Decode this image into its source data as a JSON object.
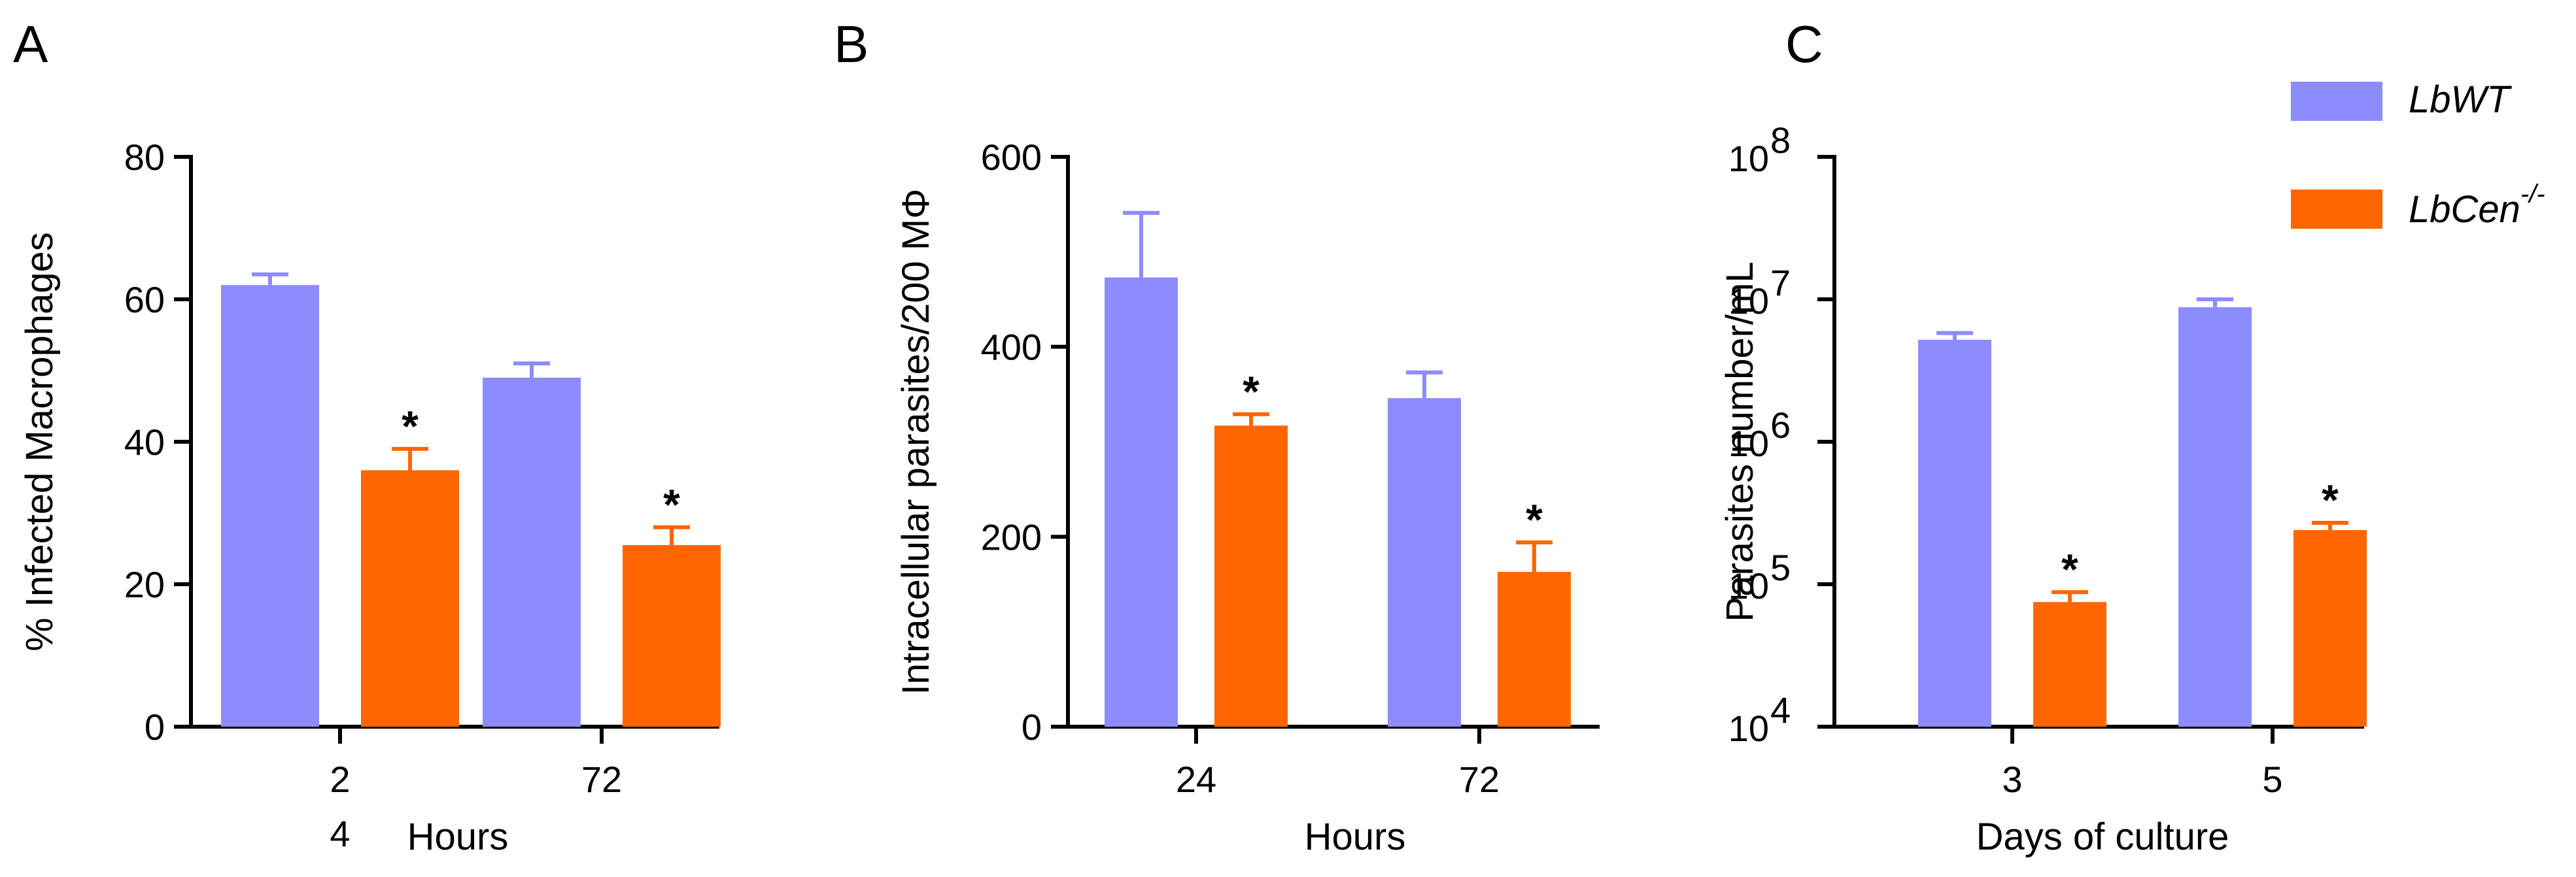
{
  "legend": {
    "entries": [
      {
        "label_main": "LbWT",
        "label_sup": "",
        "color": "#8c8cff"
      },
      {
        "label_main": "LbCen",
        "label_sup": "-/-",
        "color": "#ff6600"
      }
    ]
  },
  "chart_data": [
    {
      "panel": "A",
      "type": "bar",
      "ylabel": "% Infected Macrophages",
      "xlabel": "Hours",
      "categories": [
        "24",
        "72"
      ],
      "category_labels_display": [
        [
          "2",
          "4"
        ],
        [
          "72"
        ]
      ],
      "ylim": [
        0,
        80
      ],
      "yticks": [
        0,
        20,
        40,
        60,
        80
      ],
      "ytick_labels": [
        "0",
        "20",
        "40",
        "60",
        "80"
      ],
      "log_scale": false,
      "series": [
        {
          "name": "LbWT",
          "values": [
            62,
            49
          ],
          "errors": [
            1.5,
            2
          ],
          "color": "#8c8cff"
        },
        {
          "name": "LbCen-/-",
          "values": [
            36,
            25.5
          ],
          "errors": [
            3,
            2.5
          ],
          "color": "#ff6600",
          "significance": [
            "*",
            "*"
          ]
        }
      ]
    },
    {
      "panel": "B",
      "type": "bar",
      "ylabel": "Intracellular parasites/200 MΦ",
      "xlabel": "Hours",
      "categories": [
        "24",
        "72"
      ],
      "category_labels_display": [
        [
          "24"
        ],
        [
          "72"
        ]
      ],
      "ylim": [
        0,
        600
      ],
      "yticks": [
        0,
        200,
        400,
        600
      ],
      "ytick_labels": [
        "0",
        "200",
        "400",
        "600"
      ],
      "log_scale": false,
      "series": [
        {
          "name": "LbWT",
          "values": [
            473,
            346
          ],
          "errors": [
            68,
            27
          ],
          "color": "#8c8cff"
        },
        {
          "name": "LbCen-/-",
          "values": [
            317,
            163
          ],
          "errors": [
            12,
            31
          ],
          "color": "#ff6600",
          "significance": [
            "*",
            "*"
          ]
        }
      ]
    },
    {
      "panel": "C",
      "type": "bar",
      "ylabel": "Parasites number/mL",
      "xlabel": "Days of culture",
      "categories": [
        "3",
        "5"
      ],
      "category_labels_display": [
        [
          "3"
        ],
        [
          "5"
        ]
      ],
      "ylim": [
        10000,
        100000000
      ],
      "yticks": [
        10000,
        100000,
        1000000,
        10000000,
        100000000
      ],
      "ytick_labels": [
        {
          "base": "10",
          "exp": "4"
        },
        {
          "base": "10",
          "exp": "5"
        },
        {
          "base": "10",
          "exp": "6"
        },
        {
          "base": "10",
          "exp": "7"
        },
        {
          "base": "10",
          "exp": "8"
        }
      ],
      "log_scale": true,
      "series": [
        {
          "name": "LbWT",
          "values": [
            5200000,
            8800000
          ],
          "err_top": [
            5800000,
            10000000
          ],
          "color": "#8c8cff"
        },
        {
          "name": "LbCen-/-",
          "values": [
            75000,
            240000
          ],
          "err_top": [
            88000,
            270000
          ],
          "color": "#ff6600",
          "significance": [
            "*",
            "*"
          ]
        }
      ]
    }
  ]
}
